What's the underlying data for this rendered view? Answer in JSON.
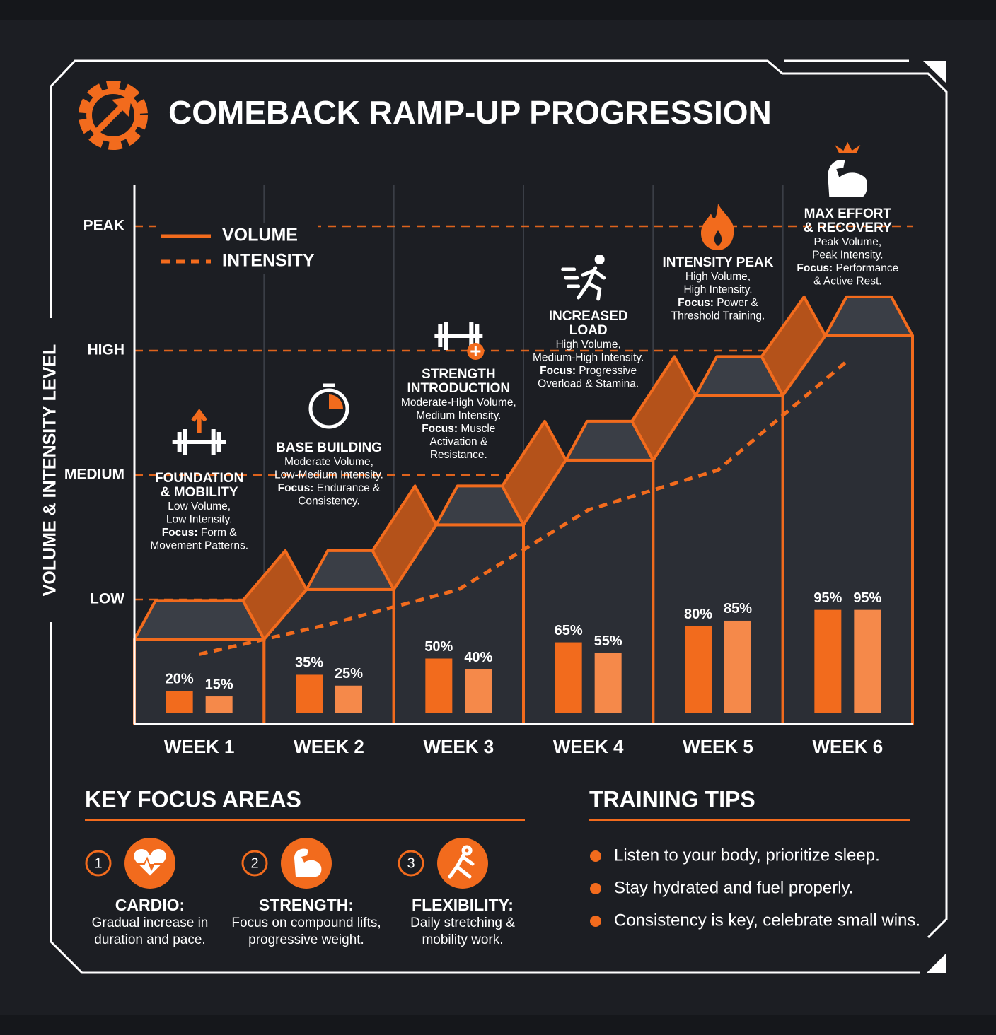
{
  "title": "COMEBACK RAMP-UP PROGRESSION",
  "chart_data": [
    {
      "type": "line",
      "y_label": "VOLUME & INTENSITY LEVEL",
      "categories": [
        "WEEK 1",
        "WEEK 2",
        "WEEK 3",
        "WEEK 4",
        "WEEK 5",
        "WEEK 6"
      ],
      "series": [
        {
          "name": "VOLUME",
          "color": "#f26b1d",
          "values": [
            17,
            27,
            40,
            53,
            66,
            78
          ]
        },
        {
          "name": "INTENSITY",
          "color": "#f26b1d",
          "values": [
            14,
            20,
            27,
            43,
            51,
            73
          ]
        }
      ],
      "ylim": [
        0,
        100
      ],
      "yticks": [
        {
          "value": 25,
          "label": "LOW"
        },
        {
          "value": 50,
          "label": "MEDIUM"
        },
        {
          "value": 75,
          "label": "HIGH"
        },
        {
          "value": 100,
          "label": "PEAK"
        }
      ],
      "grid": true
    },
    {
      "type": "bar",
      "series": [
        {
          "color": "#f26b1d",
          "values": [
            20,
            35,
            50,
            65,
            80,
            95
          ],
          "value_labels": [
            "20%",
            "35%",
            "50%",
            "65%",
            "80%",
            "95%"
          ]
        },
        {
          "color": "#f5894a",
          "values": [
            15,
            25,
            40,
            55,
            85,
            95
          ],
          "value_labels": [
            "15%",
            "25%",
            "40%",
            "55%",
            "85%",
            "95%"
          ]
        }
      ],
      "ylim": [
        0,
        100
      ]
    }
  ],
  "stages": [
    {
      "title_lines": [
        "FOUNDATION",
        "& MOBILITY"
      ],
      "lines": [
        "Low Volume,",
        "Low Intensity."
      ],
      "focus_label": "Focus:",
      "focus_lines": [
        "Form &",
        "Movement Patterns."
      ]
    },
    {
      "title_lines": [
        "BASE BUILDING"
      ],
      "lines": [
        "Moderate Volume,",
        "Low-Medium Intensity."
      ],
      "focus_label": "Focus:",
      "focus_lines": [
        "Endurance &",
        "Consistency."
      ]
    },
    {
      "title_lines": [
        "STRENGTH",
        "INTRODUCTION"
      ],
      "lines": [
        "Moderate-High Volume,",
        "Medium Intensity."
      ],
      "focus_label": "Focus:",
      "focus_lines": [
        "Muscle",
        "Activation &",
        "Resistance."
      ]
    },
    {
      "title_lines": [
        "INCREASED",
        "LOAD"
      ],
      "lines": [
        "High Volume,",
        "Medium-High Intensity."
      ],
      "focus_label": "Focus:",
      "focus_lines": [
        "Progressive",
        "Overload & Stamina."
      ]
    },
    {
      "title_lines": [
        "INTENSITY PEAK"
      ],
      "lines": [
        "High Volume,",
        "High Intensity."
      ],
      "focus_label": "Focus:",
      "focus_lines": [
        "Power &",
        "Threshold Training."
      ]
    },
    {
      "title_lines": [
        "MAX EFFORT",
        "& RECOVERY"
      ],
      "lines": [
        "Peak Volume,",
        "Peak Intensity."
      ],
      "focus_label": "Focus:",
      "focus_lines": [
        "Performance",
        "& Active Rest."
      ]
    }
  ],
  "key_focus": {
    "title": "KEY FOCUS AREAS",
    "items": [
      {
        "number": "1",
        "title": "CARDIO:",
        "lines": [
          "Gradual increase in",
          "duration and pace."
        ]
      },
      {
        "number": "2",
        "title": "STRENGTH:",
        "lines": [
          "Focus on compound lifts,",
          "progressive weight."
        ]
      },
      {
        "number": "3",
        "title": "FLEXIBILITY:",
        "lines": [
          "Daily stretching &",
          "mobility work."
        ]
      }
    ]
  },
  "training_tips": {
    "title": "TRAINING TIPS",
    "items": [
      "Listen to your body, prioritize sleep.",
      "Stay hydrated and fuel properly.",
      "Consistency is key, celebrate small wins."
    ]
  }
}
